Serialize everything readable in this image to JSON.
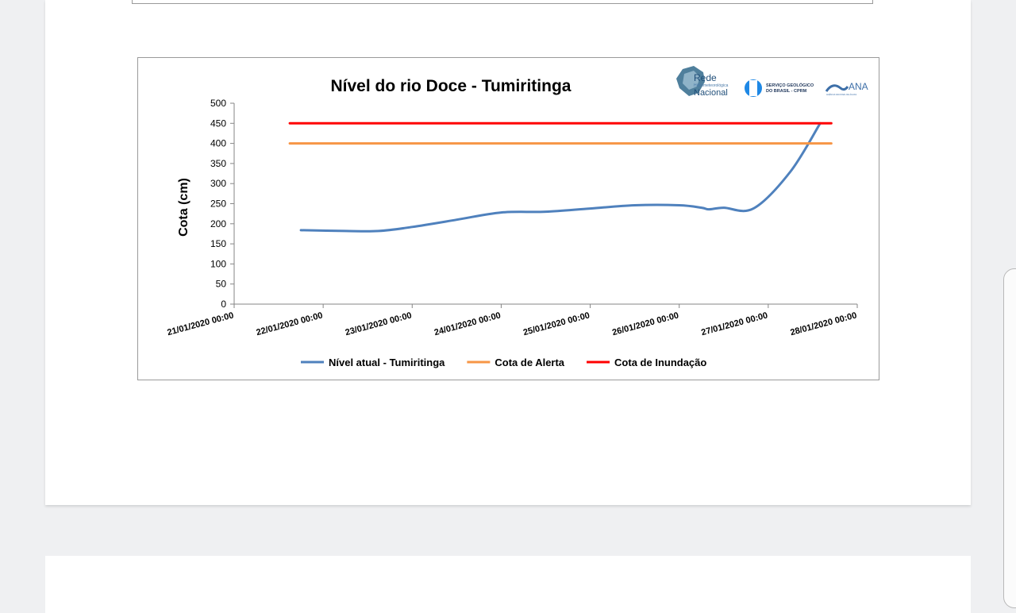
{
  "chart_data": {
    "type": "line",
    "title": "Nível do rio Doce - Tumiritinga",
    "ylabel": "Cota (cm)",
    "xlabel": "",
    "ylim": [
      0,
      500
    ],
    "yticks": [
      0,
      50,
      100,
      150,
      200,
      250,
      300,
      350,
      400,
      450,
      500
    ],
    "xticks": [
      "21/01/2020 00:00",
      "22/01/2020 00:00",
      "23/01/2020 00:00",
      "24/01/2020 00:00",
      "25/01/2020 00:00",
      "26/01/2020 00:00",
      "27/01/2020 00:00",
      "28/01/2020 00:00"
    ],
    "grid": false,
    "legend_position": "bottom",
    "series": [
      {
        "name": "Nível atual - Tumiritinga",
        "color": "#4f81bd",
        "x": [
          "2020-01-21T18:00",
          "2020-01-22T06:00",
          "2020-01-22T15:00",
          "2020-01-23T00:00",
          "2020-01-23T12:00",
          "2020-01-24T00:00",
          "2020-01-24T12:00",
          "2020-01-25T00:00",
          "2020-01-25T12:00",
          "2020-01-26T00:00",
          "2020-01-26T06:00",
          "2020-01-26T08:00",
          "2020-01-26T12:00",
          "2020-01-26T20:00",
          "2020-01-27T06:00",
          "2020-01-27T14:00"
        ],
        "values": [
          184,
          182,
          182,
          192,
          210,
          228,
          230,
          238,
          246,
          246,
          240,
          236,
          240,
          238,
          330,
          450
        ]
      },
      {
        "name": "Cota de Alerta",
        "color": "#f79646",
        "x": [
          "2020-01-21T15:00",
          "2020-01-27T17:00"
        ],
        "values": [
          400,
          400
        ]
      },
      {
        "name": "Cota de Inundação",
        "color": "#ff0000",
        "x": [
          "2020-01-21T15:00",
          "2020-01-27T17:00"
        ],
        "values": [
          450,
          450
        ]
      }
    ]
  },
  "logos": {
    "rede_line1": "Rede",
    "rede_line2": "Hidrometeorológica",
    "rede_line3": "Nacional",
    "sgb_line1": "SERVIÇO GEOLÓGICO",
    "sgb_line2": "DO BRASIL - CPRM",
    "ana": "ANA",
    "ana_sub": "AGÊNCIA NACIONAL DE ÁGUAS"
  }
}
